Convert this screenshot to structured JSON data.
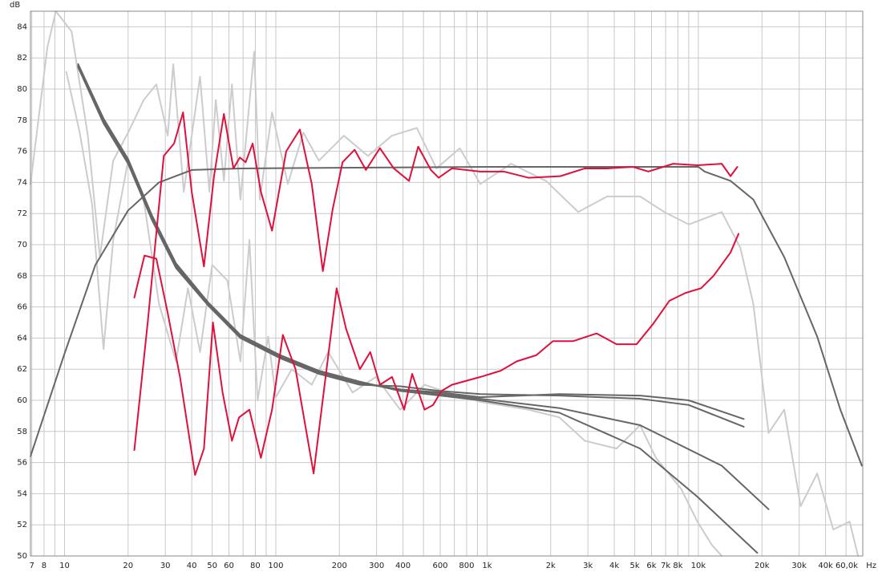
{
  "chart_data": {
    "type": "line",
    "y_label": "dB",
    "x_label": "Hz",
    "log_x": true,
    "grid": true,
    "xlim": [
      6.9,
      60000
    ],
    "ylim": [
      50,
      85
    ],
    "yticks": [
      50,
      52,
      54,
      56,
      58,
      60,
      62,
      64,
      66,
      68,
      70,
      72,
      74,
      76,
      78,
      80,
      82,
      84
    ],
    "xticks": [
      7,
      8,
      10,
      20,
      30,
      40,
      50,
      60,
      80,
      100,
      200,
      300,
      400,
      600,
      800,
      {
        "value": 1000,
        "label": "1k"
      },
      {
        "value": 2000,
        "label": "2k"
      },
      {
        "value": 3000,
        "label": "3k"
      },
      {
        "value": 4000,
        "label": "4k"
      },
      {
        "value": 5000,
        "label": "5k"
      },
      {
        "value": 6000,
        "label": "6k"
      },
      {
        "value": 7000,
        "label": "7k"
      },
      {
        "value": 8000,
        "label": "8k"
      },
      {
        "value": 10000,
        "label": "10k"
      },
      {
        "value": 20000,
        "label": "20k"
      },
      {
        "value": 30000,
        "label": "30k"
      },
      {
        "value": 40000,
        "label": "40k"
      },
      {
        "value": 60000,
        "label": "60,0k"
      }
    ],
    "xminorticks": [
      9,
      70,
      90,
      500,
      700,
      900,
      9000,
      50000
    ],
    "series": [
      {
        "color": "#cccccc",
        "x": [
          6.9,
          8.3,
          9.1,
          10.8,
          12.9,
          14.7,
          17,
          20,
          23.7,
          27.2,
          30.8,
          32.7,
          36.7,
          43.8,
          48.5,
          52,
          56.8,
          62,
          68,
          79,
          84,
          96,
          114,
          135,
          160,
          210,
          273,
          354,
          465,
          576,
          743,
          929,
          1300,
          1900,
          2700,
          3700,
          5300,
          6900,
          9000,
          12900,
          15800,
          18200,
          21500,
          25500,
          30500,
          36500,
          43500,
          52000,
          57000
        ],
        "values": [
          73.9,
          82.7,
          85,
          83.7,
          77,
          69.2,
          75.4,
          77.2,
          79.3,
          80.3,
          77,
          81.6,
          73.4,
          80.8,
          73.4,
          79.3,
          74.1,
          80.3,
          72.9,
          82.4,
          72.9,
          78.5,
          73.9,
          77.2,
          75.4,
          77,
          75.7,
          77,
          77.5,
          74.9,
          76.2,
          73.9,
          75.2,
          74.1,
          72.1,
          73.1,
          73.1,
          72.1,
          71.3,
          72.1,
          69.8,
          66.2,
          57.9,
          59.4,
          53.2,
          55.3,
          51.7,
          52.2,
          50
        ]
      },
      {
        "color": "#cccccc",
        "x": [
          10.2,
          11.8,
          13.5,
          15.3,
          17,
          20,
          23.7,
          28,
          33.7,
          38.4,
          43.8,
          50,
          59,
          68,
          75,
          82,
          92,
          100,
          119,
          148,
          177,
          231,
          297,
          388,
          506,
          650,
          929,
          1570,
          2200,
          2900,
          4100,
          5300,
          6300,
          8300,
          9900,
          11600,
          12900
        ],
        "values": [
          81.1,
          77.2,
          72.6,
          63.3,
          70.3,
          75.4,
          72.9,
          66.2,
          62.5,
          67.2,
          63.1,
          68.7,
          67.7,
          62.5,
          70.3,
          60,
          64.1,
          60.2,
          62,
          61,
          63.1,
          60.5,
          61.5,
          59.4,
          61,
          60.5,
          59.9,
          59.4,
          58.9,
          57.4,
          56.9,
          58.4,
          56.3,
          54.3,
          52.2,
          50.7,
          50
        ]
      },
      {
        "color": "#666666",
        "x": [
          6.9,
          10,
          14,
          20,
          28,
          40,
          68,
          1000,
          10000,
          10700,
          14200,
          18200,
          25500,
          36500,
          47000,
          59400
        ],
        "values": [
          56.4,
          63,
          68.7,
          72.2,
          74,
          74.8,
          74.9,
          75,
          75,
          74.7,
          74.1,
          72.9,
          69.2,
          64.1,
          59.4,
          55.8
        ]
      },
      {
        "color": "#666666",
        "x": [
          11.6,
          15.3,
          20,
          25.9,
          33.7,
          47.8,
          68,
          105,
          160,
          250,
          388,
          600,
          929,
          2200,
          5300,
          9000,
          16400
        ],
        "values": [
          81.5,
          78,
          75.4,
          71.8,
          68.7,
          66.2,
          64.1,
          62.8,
          61.8,
          61.1,
          60.7,
          60.5,
          60.2,
          60.4,
          60.3,
          60,
          58.8
        ]
      },
      {
        "color": "#666666",
        "x": [
          11.6,
          15.3,
          20,
          25.9,
          33.7,
          47.8,
          68,
          105,
          160,
          250,
          388,
          600,
          929,
          2200,
          5300,
          9000,
          16400
        ],
        "values": [
          81.4,
          77.8,
          75.2,
          71.6,
          68.5,
          66.1,
          64,
          62.7,
          61.7,
          61,
          60.9,
          60.6,
          60.4,
          60.3,
          60.1,
          59.7,
          58.3
        ]
      },
      {
        "color": "#666666",
        "x": [
          11.6,
          15.3,
          20,
          25.9,
          33.7,
          47.8,
          68,
          105,
          160,
          250,
          388,
          600,
          929,
          2200,
          5300,
          12900,
          21500
        ],
        "values": [
          81.5,
          77.9,
          75.3,
          71.7,
          68.6,
          66.2,
          64.1,
          62.8,
          61.8,
          61.1,
          60.7,
          60.4,
          60.1,
          59.5,
          58.4,
          55.8,
          53
        ]
      },
      {
        "color": "#666666",
        "x": [
          11.6,
          15.3,
          20,
          25.9,
          33.7,
          47.8,
          68,
          105,
          160,
          250,
          388,
          600,
          929,
          2200,
          5300,
          9900,
          19000
        ],
        "values": [
          81.6,
          78.1,
          75.5,
          71.9,
          68.8,
          66.3,
          64.2,
          62.9,
          61.9,
          61.2,
          60.6,
          60.3,
          60,
          59.2,
          56.9,
          53.8,
          50.2
        ]
      },
      {
        "color": "#e0103c",
        "x": [
          21.4,
          24.8,
          29.5,
          33,
          36.4,
          40,
          45.7,
          51,
          56.8,
          63,
          67.6,
          72,
          77.7,
          85,
          96,
          112,
          130,
          148,
          167,
          186,
          207,
          236,
          267,
          311,
          362,
          427,
          472,
          542,
          590,
          682,
          929,
          1200,
          1570,
          2220,
          2900,
          3700,
          4900,
          5800,
          7600,
          9900,
          12900,
          14200,
          15300
        ],
        "values": [
          56.8,
          65.1,
          75.7,
          76.5,
          78.5,
          73.4,
          68.6,
          74.4,
          78.4,
          74.9,
          75.6,
          75.3,
          76.5,
          73.4,
          70.9,
          76,
          77.4,
          73.9,
          68.3,
          72.3,
          75.3,
          76.1,
          74.8,
          76.2,
          74.9,
          74.1,
          76.3,
          74.8,
          74.3,
          74.9,
          74.7,
          74.7,
          74.3,
          74.4,
          74.9,
          74.9,
          75,
          74.7,
          75.2,
          75.1,
          75.2,
          74.4,
          75
        ]
      },
      {
        "color": "#e0103c",
        "x": [
          21.4,
          23.9,
          27.2,
          30.8,
          35.2,
          41.5,
          45.7,
          50.4,
          56,
          62,
          67,
          75,
          85,
          96,
          108,
          124,
          151,
          194,
          215,
          250,
          280,
          311,
          355,
          405,
          442,
          506,
          555,
          608,
          682,
          929,
          1160,
          1380,
          1710,
          2050,
          2550,
          3300,
          4100,
          5100,
          6100,
          7300,
          8700,
          10300,
          11800,
          14200,
          15500
        ],
        "values": [
          66.6,
          69.3,
          69.1,
          65.6,
          61.5,
          55.2,
          56.9,
          65,
          60.5,
          57.4,
          58.9,
          59.4,
          56.3,
          59.4,
          64.2,
          62,
          55.3,
          67.2,
          64.6,
          62,
          63.1,
          61,
          61.5,
          59.4,
          61.7,
          59.4,
          59.7,
          60.6,
          61,
          61.5,
          61.9,
          62.5,
          62.9,
          63.8,
          63.8,
          64.3,
          63.6,
          63.6,
          64.9,
          66.4,
          66.9,
          67.2,
          68,
          69.5,
          70.7
        ]
      }
    ]
  }
}
